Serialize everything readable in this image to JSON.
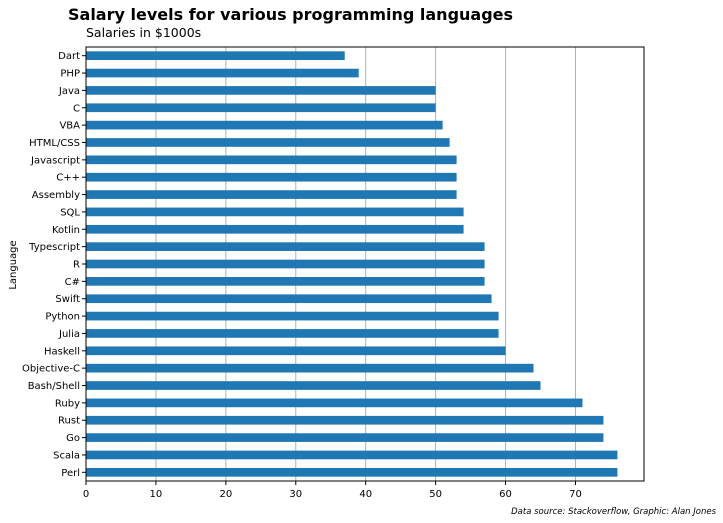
{
  "chart_data": {
    "type": "bar",
    "orientation": "horizontal",
    "title": "Salary levels for various programming languages",
    "subtitle": "Salaries in $1000s",
    "xlabel": "",
    "ylabel": "Language",
    "footnote": "Data source: Stackoverflow, Graphic: Alan Jones",
    "categories": [
      "Perl",
      "Scala",
      "Go",
      "Rust",
      "Ruby",
      "Bash/Shell",
      "Objective-C",
      "Haskell",
      "Julia",
      "Python",
      "Swift",
      "C#",
      "R",
      "Typescript",
      "Kotlin",
      "SQL",
      "Assembly",
      "C++",
      "Javascript",
      "HTML/CSS",
      "VBA",
      "C",
      "Java",
      "PHP",
      "Dart"
    ],
    "values": [
      76,
      76,
      74,
      74,
      71,
      65,
      64,
      60,
      59,
      59,
      58,
      57,
      57,
      57,
      54,
      54,
      53,
      53,
      53,
      52,
      51,
      50,
      50,
      39,
      37
    ],
    "xlim": [
      0,
      79.8
    ],
    "xticks": [
      0,
      10,
      20,
      30,
      40,
      50,
      60,
      70
    ],
    "grid": "vertical",
    "legend": "none",
    "bar_color": "#1f77b4",
    "grid_color": "#b0b0b0"
  }
}
